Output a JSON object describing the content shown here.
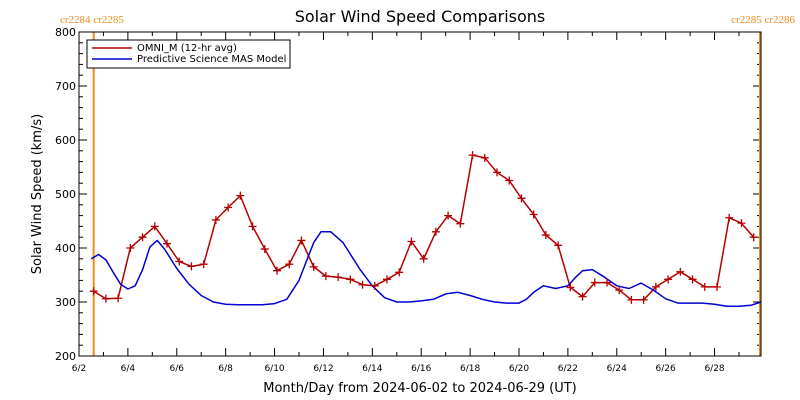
{
  "chart_data": {
    "type": "line",
    "title": "Solar Wind Speed Comparisons",
    "xlabel": "Month/Day from 2024-06-02 to 2024-06-29 (UT)",
    "ylabel": "Solar Wind Speed (km/s)",
    "ylim": [
      200,
      800
    ],
    "xlim_days": [
      0,
      27.9
    ],
    "yticks": [
      200,
      300,
      400,
      500,
      600,
      700,
      800
    ],
    "xticks": [
      {
        "day": 0,
        "label": "6/2"
      },
      {
        "day": 2,
        "label": "6/4"
      },
      {
        "day": 4,
        "label": "6/6"
      },
      {
        "day": 6,
        "label": "6/8"
      },
      {
        "day": 8,
        "label": "6/10"
      },
      {
        "day": 10,
        "label": "6/12"
      },
      {
        "day": 12,
        "label": "6/14"
      },
      {
        "day": 14,
        "label": "6/16"
      },
      {
        "day": 16,
        "label": "6/18"
      },
      {
        "day": 18,
        "label": "6/20"
      },
      {
        "day": 20,
        "label": "6/22"
      },
      {
        "day": 22,
        "label": "6/24"
      },
      {
        "day": 24,
        "label": "6/26"
      },
      {
        "day": 26,
        "label": "6/28"
      }
    ],
    "carrington": {
      "left_label": "cr2284 cr2285",
      "right_label": "cr2285 cr2286",
      "color": "#f08c1e",
      "line_days": [
        0.6,
        27.9
      ]
    },
    "legend": {
      "placement": "top-left"
    },
    "series": [
      {
        "name": "OMNI_M (12-hr avg)",
        "color": "#b40000",
        "markers": "plus",
        "x": [
          0.6,
          1.1,
          1.6,
          2.1,
          2.6,
          3.1,
          3.6,
          4.1,
          4.6,
          5.1,
          5.6,
          6.1,
          6.6,
          7.1,
          7.6,
          8.1,
          8.6,
          9.1,
          9.6,
          10.1,
          10.6,
          11.1,
          11.6,
          12.1,
          12.6,
          13.1,
          13.6,
          14.1,
          14.6,
          15.1,
          15.6,
          16.1,
          16.6,
          17.1,
          17.6,
          18.1,
          18.6,
          19.1,
          19.6,
          20.1,
          20.6,
          21.1,
          21.6,
          22.1,
          22.6,
          23.1,
          23.6,
          24.1,
          24.6,
          25.1,
          25.6,
          26.1,
          26.6,
          27.1,
          27.6
        ],
        "y": [
          320,
          306,
          307,
          400,
          420,
          440,
          408,
          375,
          366,
          370,
          452,
          475,
          497,
          440,
          398,
          358,
          370,
          414,
          365,
          348,
          346,
          342,
          332,
          330,
          342,
          355,
          412,
          380,
          430,
          460,
          445,
          572,
          567,
          540,
          525,
          492,
          462,
          424,
          405,
          327,
          310,
          336,
          336,
          322,
          304,
          304,
          328,
          342,
          356,
          342,
          328,
          328,
          456,
          446,
          420
        ]
      },
      {
        "name": "Predictive Science MAS Model",
        "color": "#0000d2",
        "markers": "none",
        "x": [
          0.5,
          0.8,
          1.1,
          1.4,
          1.7,
          2.0,
          2.3,
          2.6,
          2.9,
          3.2,
          3.5,
          4.0,
          4.5,
          5.0,
          5.5,
          6.0,
          6.5,
          7.0,
          7.5,
          8.0,
          8.5,
          9.0,
          9.3,
          9.6,
          9.9,
          10.3,
          10.8,
          11.5,
          12.0,
          12.5,
          13.0,
          13.5,
          14.0,
          14.5,
          15.0,
          15.5,
          16.0,
          16.5,
          17.0,
          17.5,
          18.0,
          18.3,
          18.6,
          19.0,
          19.5,
          20.0,
          20.3,
          20.6,
          21.0,
          21.5,
          22.0,
          22.5,
          23.0,
          23.5,
          24.0,
          24.5,
          25.0,
          25.5,
          26.0,
          26.5,
          27.0,
          27.5,
          27.9
        ],
        "y": [
          380,
          388,
          378,
          355,
          333,
          324,
          330,
          360,
          402,
          414,
          398,
          362,
          333,
          312,
          300,
          296,
          295,
          295,
          295,
          297,
          305,
          340,
          375,
          410,
          430,
          430,
          410,
          360,
          330,
          308,
          300,
          300,
          302,
          305,
          315,
          318,
          312,
          305,
          300,
          298,
          298,
          305,
          318,
          330,
          325,
          330,
          345,
          358,
          360,
          346,
          330,
          325,
          335,
          322,
          306,
          298,
          298,
          298,
          296,
          292,
          292,
          294,
          300
        ]
      }
    ]
  }
}
